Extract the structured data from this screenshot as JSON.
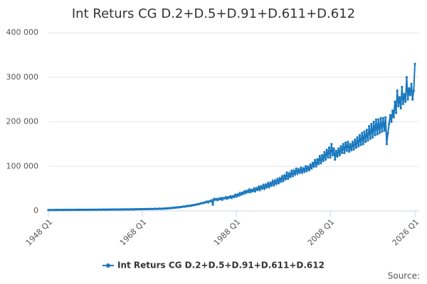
{
  "chart_data": {
    "type": "line",
    "title": "Int Returs CG D.2+D.5+D.91+D.611+D.612",
    "source": "Source:",
    "legend": "bottom",
    "grid": true,
    "ylim": [
      0,
      400000
    ],
    "yticks": [
      0,
      {
        "value": 100000,
        "label": "100 000"
      },
      {
        "value": 200000,
        "label": "200 000"
      },
      {
        "value": 300000,
        "label": "300 000"
      },
      {
        "value": 400000,
        "label": "400 000"
      }
    ],
    "categories": [
      "1948 Q1",
      null,
      null,
      null,
      null,
      null,
      null,
      null,
      null,
      null,
      null,
      null,
      null,
      null,
      null,
      null,
      null,
      null,
      null,
      null,
      null,
      null,
      null,
      null,
      null,
      null,
      null,
      null,
      null,
      null,
      null,
      null,
      null,
      null,
      null,
      null,
      null,
      null,
      null,
      null,
      null,
      null,
      null,
      null,
      null,
      null,
      null,
      null,
      null,
      null,
      null,
      null,
      null,
      null,
      null,
      null,
      null,
      null,
      null,
      null,
      null,
      null,
      null,
      null,
      null,
      null,
      null,
      null,
      null,
      null,
      null,
      null,
      null,
      null,
      null,
      null,
      null,
      null,
      null,
      null,
      "1968 Q1",
      null,
      null,
      null,
      null,
      null,
      null,
      null,
      null,
      null,
      null,
      null,
      null,
      null,
      null,
      null,
      null,
      null,
      null,
      null,
      null,
      null,
      null,
      null,
      null,
      null,
      null,
      null,
      null,
      null,
      null,
      null,
      null,
      null,
      null,
      null,
      null,
      null,
      null,
      null,
      null,
      null,
      null,
      null,
      null,
      null,
      null,
      null,
      null,
      null,
      null,
      null,
      null,
      null,
      null,
      null,
      null,
      null,
      null,
      null,
      null,
      null,
      null,
      null,
      null,
      null,
      null,
      null,
      null,
      null,
      null,
      null,
      null,
      null,
      null,
      null,
      null,
      null,
      null,
      null,
      "1988 Q1",
      null,
      null,
      null,
      null,
      null,
      null,
      null,
      null,
      null,
      null,
      null,
      null,
      null,
      null,
      null,
      null,
      null,
      null,
      null,
      null,
      null,
      null,
      null,
      null,
      null,
      null,
      null,
      null,
      null,
      null,
      null,
      null,
      null,
      null,
      null,
      null,
      null,
      null,
      null,
      null,
      null,
      null,
      null,
      null,
      null,
      null,
      null,
      null,
      null,
      null,
      null,
      null,
      null,
      null,
      null,
      null,
      null,
      null,
      null,
      null,
      null,
      null,
      null,
      null,
      null,
      null,
      null,
      null,
      null,
      null,
      null,
      null,
      null,
      null,
      null,
      null,
      null,
      null,
      null,
      "2008 Q1",
      null,
      null,
      null,
      null,
      null,
      null,
      null,
      null,
      null,
      null,
      null,
      null,
      null,
      null,
      null,
      null,
      null,
      null,
      null,
      null,
      null,
      null,
      null,
      null,
      null,
      null,
      null,
      null,
      null,
      null,
      null,
      null,
      null,
      null,
      null,
      null,
      null,
      null,
      null,
      null,
      null,
      null,
      null,
      null,
      null,
      null,
      null,
      null,
      null,
      null,
      null,
      null,
      null,
      null,
      null,
      null,
      null,
      null,
      null,
      null,
      null,
      null,
      null,
      null,
      null,
      null,
      null,
      null,
      null,
      null,
      null,
      "2026 Q1"
    ],
    "series": [
      {
        "name": "Int Returs CG D.2+D.5+D.91+D.611+D.612",
        "color": "#1a78be",
        "values": [
          1800,
          2000,
          1900,
          2100,
          1900,
          2000,
          2000,
          2200,
          2000,
          2100,
          2100,
          2300,
          2100,
          2200,
          2200,
          2400,
          2100,
          2200,
          2300,
          2400,
          2200,
          2300,
          2300,
          2500,
          2200,
          2400,
          2400,
          2600,
          2300,
          2400,
          2500,
          2700,
          2400,
          2500,
          2500,
          2700,
          2500,
          2600,
          2600,
          2800,
          2500,
          2600,
          2700,
          2900,
          2600,
          2700,
          2800,
          3000,
          2700,
          2800,
          2900,
          3100,
          2800,
          2900,
          3000,
          3200,
          2900,
          3000,
          3100,
          3300,
          3000,
          3100,
          3200,
          3400,
          3100,
          3300,
          3300,
          3600,
          3200,
          3400,
          3500,
          3700,
          3400,
          3500,
          3600,
          3900,
          3500,
          3700,
          3800,
          4100,
          3700,
          3900,
          4000,
          4300,
          3900,
          4100,
          4200,
          4500,
          4100,
          4300,
          4500,
          4800,
          4300,
          4600,
          4700,
          5100,
          4600,
          4900,
          5000,
          5400,
          5200,
          5600,
          5800,
          6300,
          6000,
          6500,
          6800,
          7400,
          7000,
          7600,
          7900,
          8500,
          8200,
          8800,
          9100,
          9800,
          9500,
          10200,
          10500,
          11300,
          11000,
          11800,
          12200,
          13000,
          12800,
          13800,
          14200,
          15200,
          15000,
          16200,
          16800,
          17800,
          17500,
          18800,
          19500,
          21000,
          19000,
          21500,
          22000,
          24000,
          14000,
          27000,
          25000,
          26500,
          24000,
          27500,
          26000,
          29000,
          25000,
          29000,
          28000,
          31000,
          27000,
          31000,
          29500,
          33000,
          29000,
          33000,
          31000,
          36000,
          32000,
          37000,
          34000,
          40000,
          36000,
          41000,
          38000,
          44000,
          40000,
          45000,
          42000,
          48000,
          42000,
          47000,
          44000,
          50000,
          44000,
          51000,
          47000,
          54000,
          47000,
          55000,
          50000,
          58000,
          50000,
          59000,
          53000,
          62000,
          54000,
          63000,
          57000,
          67000,
          58000,
          68000,
          61000,
          72000,
          62000,
          73000,
          66000,
          78000,
          67000,
          80000,
          71000,
          86000,
          72000,
          84000,
          76000,
          90000,
          78000,
          90000,
          82000,
          95000,
          84000,
          93000,
          86000,
          97000,
          86000,
          95000,
          88000,
          100000,
          90000,
          99000,
          92000,
          104000,
          95000,
          108000,
          99000,
          114000,
          100000,
          116000,
          105000,
          123000,
          107000,
          125000,
          112000,
          132000,
          115000,
          137000,
          120000,
          142000,
          120000,
          150000,
          125000,
          140000,
          115000,
          135000,
          122000,
          140000,
          125000,
          145000,
          130000,
          150000,
          130000,
          153000,
          135000,
          155000,
          133000,
          150000,
          136000,
          155000,
          138000,
          160000,
          142000,
          165000,
          145000,
          170000,
          148000,
          175000,
          150000,
          178000,
          155000,
          182000,
          158000,
          190000,
          162000,
          195000,
          165000,
          200000,
          170000,
          205000,
          172000,
          205000,
          175000,
          208000,
          178000,
          208000,
          180000,
          210000,
          150000,
          175000,
          195000,
          215000,
          200000,
          225000,
          210000,
          245000,
          220000,
          270000,
          235000,
          255000,
          230000,
          278000,
          240000,
          262000,
          245000,
          300000,
          250000,
          275000,
          260000,
          285000,
          250000,
          270000,
          330000
        ]
      }
    ]
  }
}
